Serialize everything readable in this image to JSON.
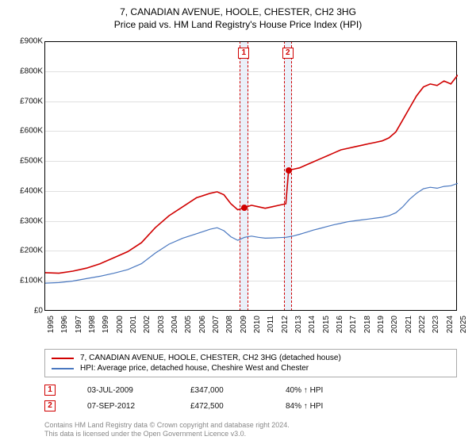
{
  "title": "7, CANADIAN AVENUE, HOOLE, CHESTER, CH2 3HG",
  "subtitle": "Price paid vs. HM Land Registry's House Price Index (HPI)",
  "chart": {
    "type": "line",
    "background_color": "#ffffff",
    "grid_color": "#e0e0e0",
    "axis_color": "#000000",
    "ylim": [
      0,
      900000
    ],
    "ytick_step": 100000,
    "yticks": [
      "£0",
      "£100K",
      "£200K",
      "£300K",
      "£400K",
      "£500K",
      "£600K",
      "£700K",
      "£800K",
      "£900K"
    ],
    "xlim": [
      1995,
      2025
    ],
    "xticks": [
      "1995",
      "1996",
      "1997",
      "1998",
      "1999",
      "2000",
      "2001",
      "2002",
      "2003",
      "2004",
      "2005",
      "2006",
      "2007",
      "2008",
      "2009",
      "2010",
      "2011",
      "2012",
      "2013",
      "2014",
      "2015",
      "2016",
      "2017",
      "2018",
      "2019",
      "2020",
      "2021",
      "2022",
      "2023",
      "2024",
      "2025"
    ],
    "series": [
      {
        "name": "7, CANADIAN AVENUE, HOOLE, CHESTER, CH2 3HG (detached house)",
        "color": "#d00000",
        "line_width": 1.6,
        "points": [
          [
            1995,
            130000
          ],
          [
            1996,
            128000
          ],
          [
            1997,
            135000
          ],
          [
            1998,
            145000
          ],
          [
            1999,
            160000
          ],
          [
            2000,
            180000
          ],
          [
            2001,
            200000
          ],
          [
            2002,
            230000
          ],
          [
            2003,
            280000
          ],
          [
            2004,
            320000
          ],
          [
            2005,
            350000
          ],
          [
            2006,
            380000
          ],
          [
            2007,
            395000
          ],
          [
            2007.5,
            400000
          ],
          [
            2008,
            390000
          ],
          [
            2008.5,
            360000
          ],
          [
            2009,
            340000
          ],
          [
            2009.5,
            347000
          ],
          [
            2010,
            355000
          ],
          [
            2010.5,
            350000
          ],
          [
            2011,
            345000
          ],
          [
            2011.5,
            350000
          ],
          [
            2012,
            355000
          ],
          [
            2012.5,
            360000
          ],
          [
            2012.7,
            472500
          ],
          [
            2013,
            475000
          ],
          [
            2013.5,
            480000
          ],
          [
            2014,
            490000
          ],
          [
            2014.5,
            500000
          ],
          [
            2015,
            510000
          ],
          [
            2015.5,
            520000
          ],
          [
            2016,
            530000
          ],
          [
            2016.5,
            540000
          ],
          [
            2017,
            545000
          ],
          [
            2017.5,
            550000
          ],
          [
            2018,
            555000
          ],
          [
            2018.5,
            560000
          ],
          [
            2019,
            565000
          ],
          [
            2019.5,
            570000
          ],
          [
            2020,
            580000
          ],
          [
            2020.5,
            600000
          ],
          [
            2021,
            640000
          ],
          [
            2021.5,
            680000
          ],
          [
            2022,
            720000
          ],
          [
            2022.5,
            750000
          ],
          [
            2023,
            760000
          ],
          [
            2023.5,
            755000
          ],
          [
            2024,
            770000
          ],
          [
            2024.5,
            760000
          ],
          [
            2025,
            790000
          ]
        ]
      },
      {
        "name": "HPI: Average price, detached house, Cheshire West and Chester",
        "color": "#4a78c0",
        "line_width": 1.2,
        "points": [
          [
            1995,
            95000
          ],
          [
            1996,
            97000
          ],
          [
            1997,
            102000
          ],
          [
            1998,
            110000
          ],
          [
            1999,
            118000
          ],
          [
            2000,
            128000
          ],
          [
            2001,
            140000
          ],
          [
            2002,
            160000
          ],
          [
            2003,
            195000
          ],
          [
            2004,
            225000
          ],
          [
            2005,
            245000
          ],
          [
            2006,
            260000
          ],
          [
            2007,
            275000
          ],
          [
            2007.5,
            280000
          ],
          [
            2008,
            270000
          ],
          [
            2008.5,
            250000
          ],
          [
            2009,
            238000
          ],
          [
            2009.5,
            248000
          ],
          [
            2010,
            252000
          ],
          [
            2010.5,
            248000
          ],
          [
            2011,
            245000
          ],
          [
            2011.5,
            246000
          ],
          [
            2012,
            247000
          ],
          [
            2012.5,
            248000
          ],
          [
            2013,
            252000
          ],
          [
            2013.5,
            258000
          ],
          [
            2014,
            265000
          ],
          [
            2014.5,
            272000
          ],
          [
            2015,
            278000
          ],
          [
            2015.5,
            284000
          ],
          [
            2016,
            290000
          ],
          [
            2016.5,
            295000
          ],
          [
            2017,
            300000
          ],
          [
            2017.5,
            303000
          ],
          [
            2018,
            306000
          ],
          [
            2018.5,
            309000
          ],
          [
            2019,
            312000
          ],
          [
            2019.5,
            315000
          ],
          [
            2020,
            320000
          ],
          [
            2020.5,
            330000
          ],
          [
            2021,
            350000
          ],
          [
            2021.5,
            375000
          ],
          [
            2022,
            395000
          ],
          [
            2022.5,
            410000
          ],
          [
            2023,
            415000
          ],
          [
            2023.5,
            412000
          ],
          [
            2024,
            418000
          ],
          [
            2024.5,
            420000
          ],
          [
            2025,
            428000
          ]
        ]
      }
    ],
    "sale_bands": [
      {
        "label": "1",
        "x": 2009.5,
        "width": 0.6,
        "dot_y": 347000
      },
      {
        "label": "2",
        "x": 2012.7,
        "width": 0.6,
        "dot_y": 472500
      }
    ],
    "sale_band_color": "#eaf0f9",
    "sale_dash_color": "#d00000"
  },
  "legend": {
    "items": [
      {
        "color": "#d00000",
        "label": "7, CANADIAN AVENUE, HOOLE, CHESTER, CH2 3HG (detached house)"
      },
      {
        "color": "#4a78c0",
        "label": "HPI: Average price, detached house, Cheshire West and Chester"
      }
    ]
  },
  "sales": [
    {
      "num": "1",
      "date": "03-JUL-2009",
      "price": "£347,000",
      "delta": "40% ↑ HPI"
    },
    {
      "num": "2",
      "date": "07-SEP-2012",
      "price": "£472,500",
      "delta": "84% ↑ HPI"
    }
  ],
  "footer_line1": "Contains HM Land Registry data © Crown copyright and database right 2024.",
  "footer_line2": "This data is licensed under the Open Government Licence v3.0."
}
